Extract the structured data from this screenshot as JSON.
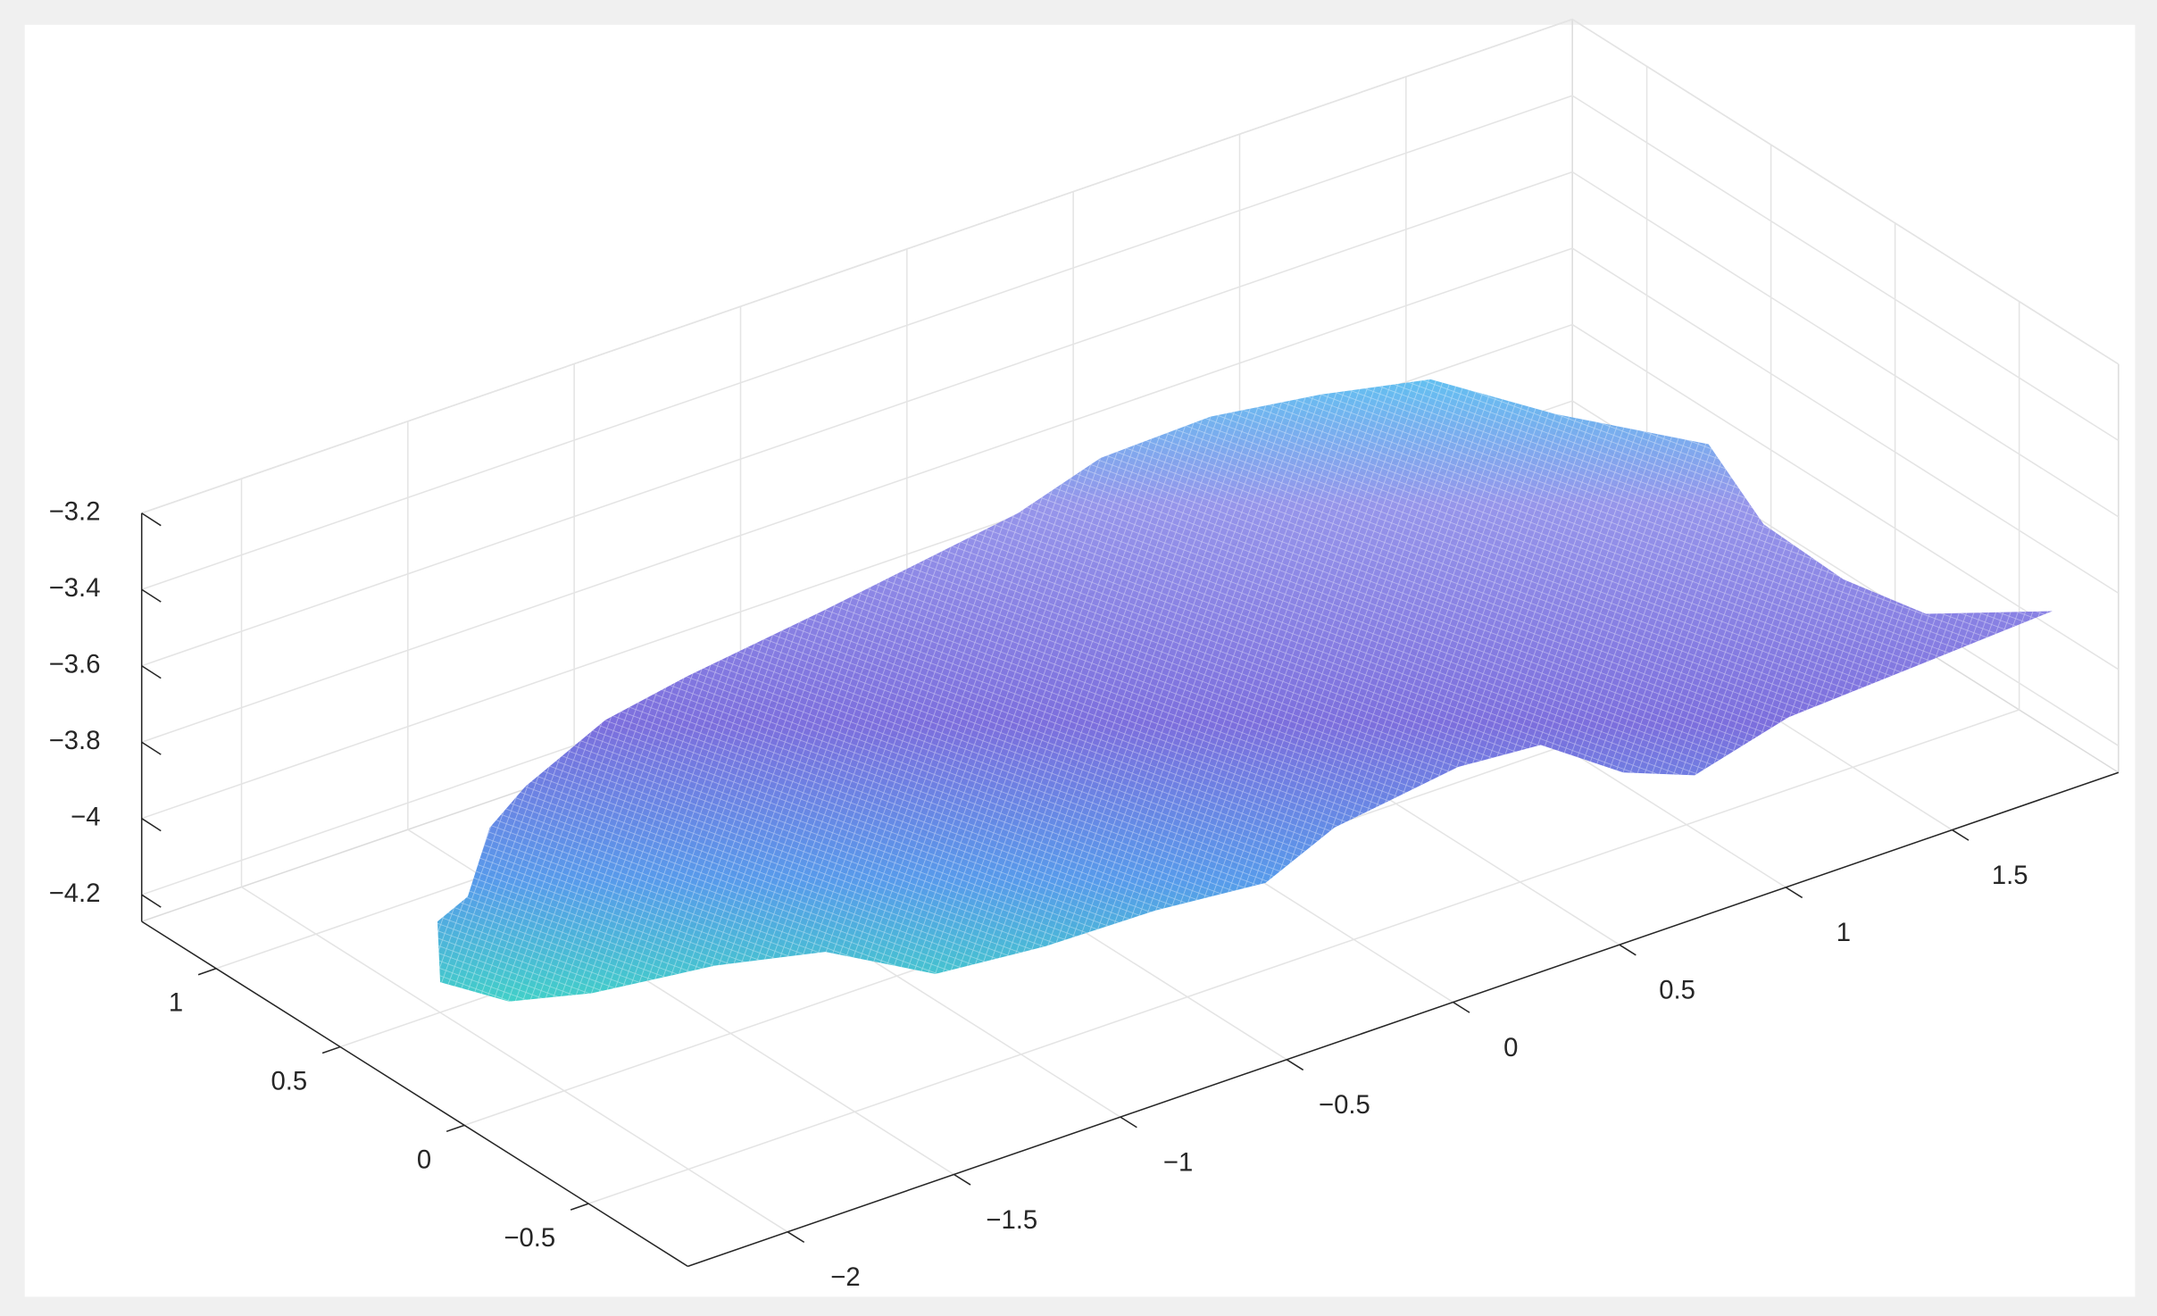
{
  "chart_data": {
    "type": "surface",
    "xlim": [
      -2.3,
      2
    ],
    "ylim": [
      -0.9,
      1.3
    ],
    "zlim": [
      -4.27,
      -3.2
    ],
    "xticks": [
      {
        "value": -2,
        "label": "−2"
      },
      {
        "value": -1.5,
        "label": "−1.5"
      },
      {
        "value": -1,
        "label": "−1"
      },
      {
        "value": -0.5,
        "label": "−0.5"
      },
      0,
      0.5,
      1,
      1.5
    ],
    "yticks": [
      {
        "value": -0.5,
        "label": "−0.5"
      },
      0,
      0.5,
      1
    ],
    "zticks": [
      {
        "value": -4.2,
        "label": "−4.2"
      },
      {
        "value": -4,
        "label": "−4"
      },
      {
        "value": -3.8,
        "label": "−3.8"
      },
      {
        "value": -3.6,
        "label": "−3.6"
      },
      {
        "value": -3.4,
        "label": "−3.4"
      },
      {
        "value": -3.2,
        "label": "−3.2"
      }
    ],
    "grid": true
  }
}
